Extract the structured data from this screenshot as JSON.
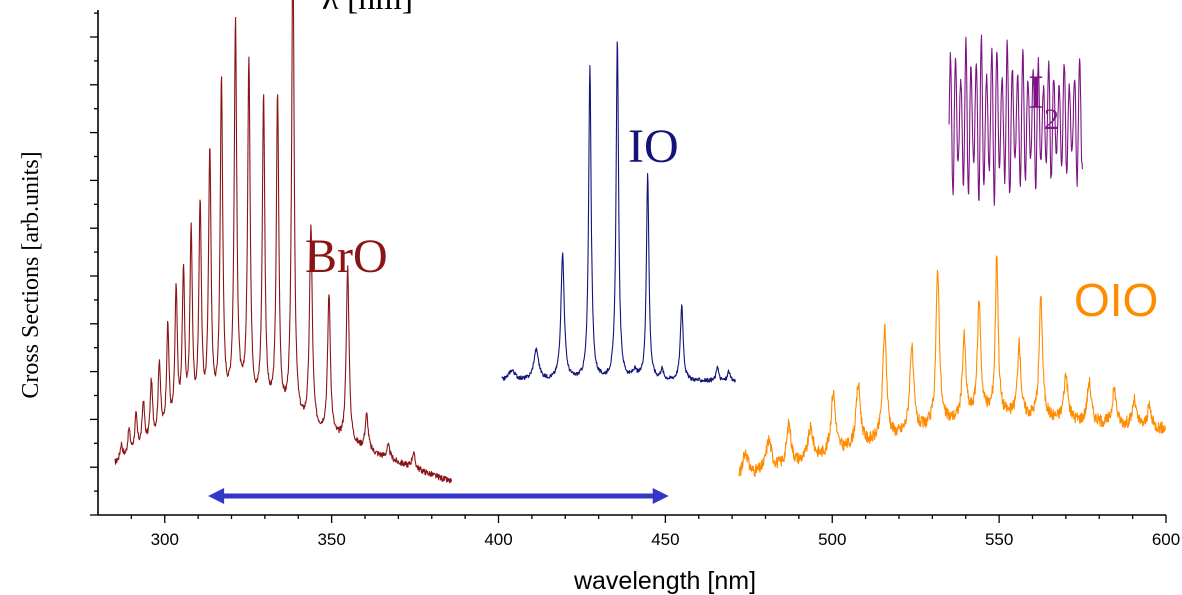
{
  "chart_data": {
    "type": "line",
    "title_fragment": "λ [nm]",
    "xlabel": "wavelength [nm]",
    "ylabel": "Cross Sections [arb.units]",
    "xlim": [
      280,
      600
    ],
    "xticks": [
      300,
      350,
      400,
      450,
      500,
      550,
      600
    ],
    "y_tick_labels_shown": false,
    "grid": false,
    "arrow": {
      "from": 313,
      "to": 451,
      "color": "#3535c8"
    },
    "series": [
      {
        "name": "BrO",
        "color": "#8b1414",
        "xrange": [
          285,
          386
        ],
        "baseline_start": 0.1,
        "baseline_peak": 0.215,
        "peak_center": 322,
        "baseline_end": 0.065,
        "noise": 0.006,
        "peaks": [
          {
            "x": 287.0,
            "h": 0.03,
            "w": 0.45
          },
          {
            "x": 289.3,
            "h": 0.05,
            "w": 0.45
          },
          {
            "x": 291.4,
            "h": 0.07,
            "w": 0.45
          },
          {
            "x": 293.6,
            "h": 0.09,
            "w": 0.45
          },
          {
            "x": 296.0,
            "h": 0.12,
            "w": 0.45
          },
          {
            "x": 298.4,
            "h": 0.15,
            "w": 0.45
          },
          {
            "x": 300.9,
            "h": 0.21,
            "w": 0.45
          },
          {
            "x": 303.4,
            "h": 0.27,
            "w": 0.45
          },
          {
            "x": 305.6,
            "h": 0.3,
            "w": 0.45
          },
          {
            "x": 307.9,
            "h": 0.37,
            "w": 0.45
          },
          {
            "x": 310.6,
            "h": 0.42,
            "w": 0.45
          },
          {
            "x": 313.5,
            "h": 0.52,
            "w": 0.45
          },
          {
            "x": 317.0,
            "h": 0.65,
            "w": 0.45
          },
          {
            "x": 321.2,
            "h": 0.75,
            "w": 0.45
          },
          {
            "x": 325.2,
            "h": 0.68,
            "w": 0.45
          },
          {
            "x": 329.6,
            "h": 0.62,
            "w": 0.45
          },
          {
            "x": 333.8,
            "h": 0.63,
            "w": 0.45
          },
          {
            "x": 338.4,
            "h": 0.95,
            "w": 0.45
          },
          {
            "x": 343.8,
            "h": 0.4,
            "w": 0.5
          },
          {
            "x": 349.2,
            "h": 0.28,
            "w": 0.5
          },
          {
            "x": 354.8,
            "h": 0.35,
            "w": 0.5
          },
          {
            "x": 360.5,
            "h": 0.07,
            "w": 0.55
          },
          {
            "x": 367.0,
            "h": 0.025,
            "w": 0.6
          },
          {
            "x": 374.5,
            "h": 0.03,
            "w": 0.55
          }
        ]
      },
      {
        "name": "IO",
        "color": "#13137a",
        "xrange": [
          401,
          471
        ],
        "baseline_start": 0.265,
        "baseline_peak": 0.265,
        "peak_center": 436,
        "baseline_end": 0.265,
        "noise": 0.004,
        "peaks": [
          {
            "x": 404.0,
            "h": 0.02,
            "w": 1.2
          },
          {
            "x": 411.3,
            "h": 0.06,
            "w": 0.9
          },
          {
            "x": 419.2,
            "h": 0.25,
            "w": 0.6
          },
          {
            "x": 427.4,
            "h": 0.62,
            "w": 0.45
          },
          {
            "x": 435.6,
            "h": 0.67,
            "w": 0.45
          },
          {
            "x": 440.8,
            "h": 0.015,
            "w": 0.8
          },
          {
            "x": 444.7,
            "h": 0.41,
            "w": 0.45
          },
          {
            "x": 449.0,
            "h": 0.02,
            "w": 0.5
          },
          {
            "x": 454.9,
            "h": 0.15,
            "w": 0.5
          },
          {
            "x": 465.6,
            "h": 0.03,
            "w": 0.4
          },
          {
            "x": 469.0,
            "h": 0.02,
            "w": 0.4
          }
        ]
      },
      {
        "name": "OIO",
        "color": "#ff8c00",
        "xrange": [
          472,
          600
        ],
        "baseline_start": 0.07,
        "baseline_peak": 0.2,
        "peak_center": 545,
        "baseline_end": 0.17,
        "noise": 0.012,
        "peaks": [
          {
            "x": 474.0,
            "h": 0.05,
            "w": 1.0
          },
          {
            "x": 481.0,
            "h": 0.06,
            "w": 1.0
          },
          {
            "x": 487.0,
            "h": 0.08,
            "w": 0.8
          },
          {
            "x": 493.5,
            "h": 0.06,
            "w": 0.9
          },
          {
            "x": 500.3,
            "h": 0.12,
            "w": 0.8
          },
          {
            "x": 507.8,
            "h": 0.12,
            "w": 0.8
          },
          {
            "x": 515.7,
            "h": 0.22,
            "w": 0.7
          },
          {
            "x": 523.8,
            "h": 0.17,
            "w": 0.7
          },
          {
            "x": 531.6,
            "h": 0.31,
            "w": 0.6
          },
          {
            "x": 539.5,
            "h": 0.16,
            "w": 0.6
          },
          {
            "x": 544.0,
            "h": 0.22,
            "w": 0.6
          },
          {
            "x": 549.3,
            "h": 0.32,
            "w": 0.5
          },
          {
            "x": 556.0,
            "h": 0.14,
            "w": 0.6
          },
          {
            "x": 562.5,
            "h": 0.24,
            "w": 0.6
          },
          {
            "x": 570.0,
            "h": 0.09,
            "w": 0.7
          },
          {
            "x": 577.0,
            "h": 0.08,
            "w": 0.7
          },
          {
            "x": 584.5,
            "h": 0.07,
            "w": 0.7
          },
          {
            "x": 590.5,
            "h": 0.05,
            "w": 0.7
          },
          {
            "x": 595.0,
            "h": 0.04,
            "w": 0.7
          }
        ]
      },
      {
        "name": "I2",
        "name_base": "I",
        "name_sub": "2",
        "color": "#7d1483",
        "xrange": [
          535,
          575
        ],
        "center": 0.78,
        "amp": 0.17,
        "period": 1.55
      }
    ]
  }
}
